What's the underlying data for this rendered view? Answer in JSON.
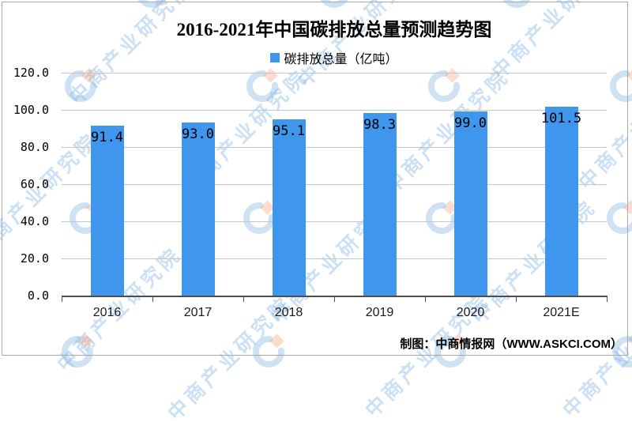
{
  "title": "2016-2021年中国碳排放总量预测趋势图",
  "legend": {
    "label": "碳排放总量（亿吨）",
    "marker_color": "#3e97ed"
  },
  "chart_data": {
    "type": "bar",
    "title": "2016-2021年中国碳排放总量预测趋势图",
    "series_name": "碳排放总量（亿吨）",
    "categories": [
      "2016",
      "2017",
      "2018",
      "2019",
      "2020",
      "2021E"
    ],
    "values": [
      91.4,
      93.0,
      95.1,
      98.3,
      99.0,
      101.5
    ],
    "data_labels": [
      "91.4",
      "93.0",
      "95.1",
      "98.3",
      "99.0",
      "101.5"
    ],
    "xlabel": "",
    "ylabel": "",
    "ylim": [
      0,
      120
    ],
    "ytick_step": 20,
    "ytick_labels": [
      "0.0",
      "20.0",
      "40.0",
      "60.0",
      "80.0",
      "100.0",
      "120.0"
    ],
    "grid": true,
    "legend_position": "top-center",
    "bar_color": "#3e97ed"
  },
  "footer": {
    "credit": "制图：中商情报网（WWW.ASKCI.COM）"
  },
  "watermark": {
    "text": "中商产业研究院",
    "logo": "askci-logo",
    "text_color": "rgba(126,178,227,0.40)",
    "logo_arc_color": "rgba(126,178,227,0.38)",
    "logo_diamond_color": "rgba(244,140,92,0.30)"
  }
}
